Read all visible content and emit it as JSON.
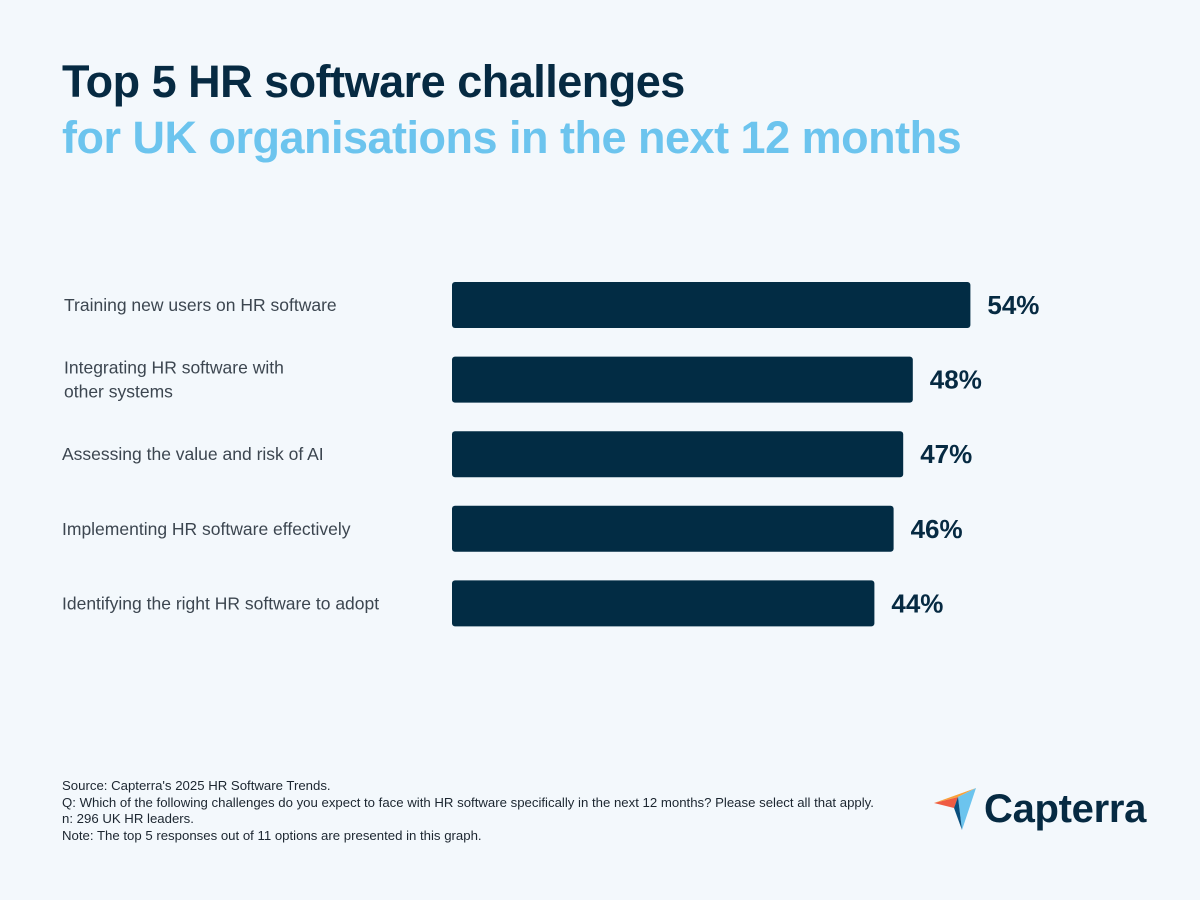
{
  "title": "Top 5 HR software challenges",
  "subtitle": "for UK organisations in the next 12 months",
  "chart_data": {
    "type": "bar",
    "orientation": "horizontal",
    "categories": [
      [
        "Training new users on HR software"
      ],
      [
        "Integrating HR software with",
        "other systems"
      ],
      [
        "Assessing the value and risk of AI"
      ],
      [
        "Implementing HR software effectively"
      ],
      [
        "Identifying the right HR software to adopt"
      ]
    ],
    "values": [
      54,
      48,
      47,
      46,
      44
    ],
    "value_labels": [
      "54%",
      "48%",
      "47%",
      "46%",
      "44%"
    ],
    "unit": "%",
    "xlim": [
      0,
      100
    ],
    "grid": false,
    "axes_visible": false,
    "bar_color": "#022c44"
  },
  "notes": {
    "source": "Source: Capterra's 2025 HR Software Trends.",
    "question": "Q: Which of the following challenges do you expect to face with HR software specifically in the next 12 months? Please select all that apply.",
    "n": "n: 296 UK HR leaders.",
    "note": "Note: The top 5 responses out of 11 options are presented in this graph."
  },
  "logo": {
    "text": "Capterra"
  },
  "colors": {
    "title": "#062a42",
    "subtitle": "#6cc4ee",
    "background": "#f3f8fc"
  }
}
